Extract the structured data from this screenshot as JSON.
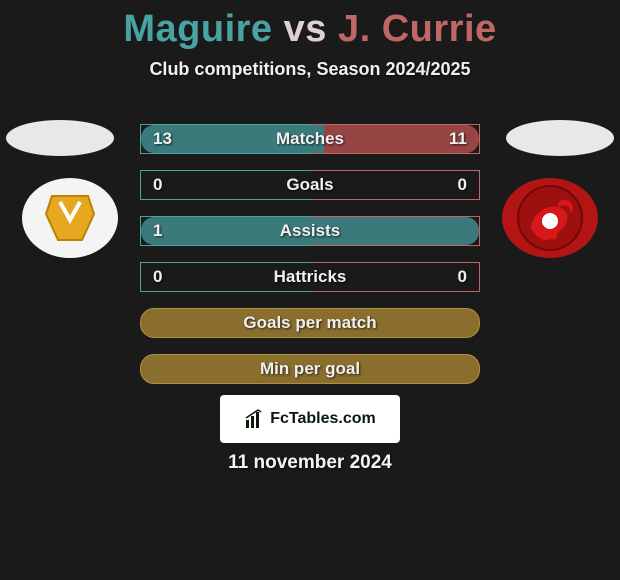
{
  "title": {
    "player1": "Maguire",
    "vs": "vs",
    "player2": "J. Currie",
    "player1_color": "#4aa3a3",
    "vs_color": "#e0d0d0",
    "player2_color": "#c06666",
    "fontsize": 38
  },
  "subtitle": "Club competitions, Season 2024/2025",
  "bars": {
    "background_color": "#1a1a1a",
    "border_color_left": "#4aa3a3",
    "border_color_right": "#c06666",
    "border_color_single": "#b09040",
    "fill_color_left": "#3a7a7a",
    "fill_color_right": "#964444",
    "fill_color_single": "#8a6e2e",
    "text_color": "#f0f0f0",
    "label_fontsize": 17,
    "rows": [
      {
        "label": "Matches",
        "left": "13",
        "right": "11",
        "left_pct": 54,
        "right_pct": 46,
        "mode": "split"
      },
      {
        "label": "Goals",
        "left": "0",
        "right": "0",
        "left_pct": 0,
        "right_pct": 0,
        "mode": "split"
      },
      {
        "label": "Assists",
        "left": "1",
        "right": "",
        "left_pct": 100,
        "right_pct": 0,
        "mode": "split"
      },
      {
        "label": "Hattricks",
        "left": "0",
        "right": "0",
        "left_pct": 0,
        "right_pct": 0,
        "mode": "split"
      },
      {
        "label": "Goals per match",
        "left": "",
        "right": "",
        "left_pct": 0,
        "right_pct": 0,
        "mode": "single"
      },
      {
        "label": "Min per goal",
        "left": "",
        "right": "",
        "left_pct": 0,
        "right_pct": 0,
        "mode": "single"
      }
    ]
  },
  "clubs": {
    "left_badge_bg": "#f4f4f4",
    "right_badge_bg": "#b31515",
    "left_badge_accent": "#d9a020",
    "right_badge_accent": "#ffffff"
  },
  "footer": {
    "logo_text": "FcTables.com",
    "date": "11 november 2024"
  }
}
